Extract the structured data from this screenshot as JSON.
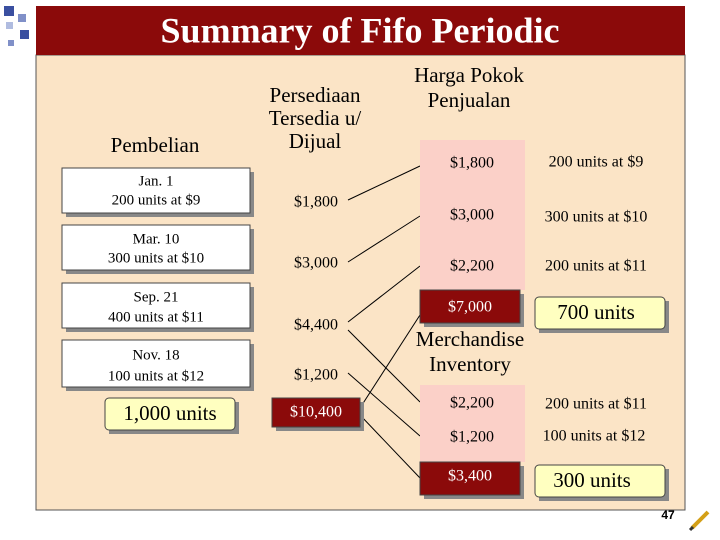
{
  "title": "Summary of Fifo Periodic",
  "purchases": {
    "header": "Pembelian",
    "items": [
      {
        "date": "Jan. 1",
        "detail": "200 units at $9"
      },
      {
        "date": "Mar. 10",
        "detail": "300 units at $10"
      },
      {
        "date": "Sep. 21",
        "detail": "400 units at $11"
      },
      {
        "date": "Nov. 18",
        "detail": "100 units at $12"
      }
    ],
    "total": "1,000 units"
  },
  "available": {
    "header": [
      "Persediaan",
      "Tersedia u/",
      "Dijual"
    ],
    "values": [
      "$1,800",
      "$3,000",
      "$4,400",
      "$1,200"
    ],
    "total": "$10,400"
  },
  "cogs": {
    "header": [
      "Harga Pokok",
      "Penjualan"
    ],
    "rows": [
      {
        "amount": "$1,800",
        "units": "200 units at $9"
      },
      {
        "amount": "$3,000",
        "units": "300 units at $10"
      },
      {
        "amount": "$2,200",
        "units": "200 units at $11"
      }
    ],
    "total": "$7,000",
    "total_units": "700 units"
  },
  "inventory": {
    "header": [
      "Merchandise",
      "Inventory"
    ],
    "rows": [
      {
        "amount": "$2,200",
        "units": "200 units at $11"
      },
      {
        "amount": "$1,200",
        "units": "100 units at $12"
      }
    ],
    "total": "$3,400",
    "total_units": "300 units"
  },
  "page_number": "47"
}
